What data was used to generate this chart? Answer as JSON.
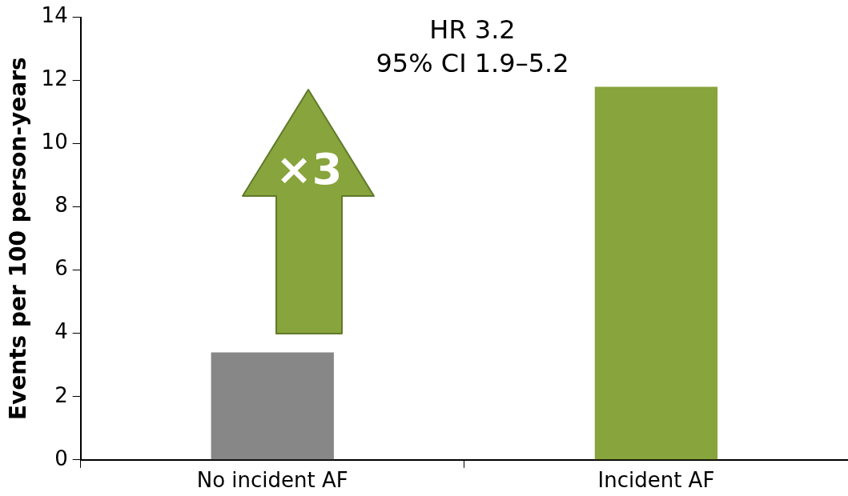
{
  "chart_data": {
    "type": "bar",
    "ylabel": "Events per 100 person-years",
    "categories": [
      "No incident AF",
      "Incident AF"
    ],
    "values": [
      3.4,
      11.8
    ],
    "colors": [
      "#878787",
      "#88a43c"
    ],
    "ylim": [
      0,
      14
    ],
    "yticks": [
      0,
      2,
      4,
      6,
      8,
      10,
      12,
      14
    ],
    "annotations": [
      "HR 3.2",
      "95% CI 1.9–5.2",
      "×3"
    ]
  }
}
